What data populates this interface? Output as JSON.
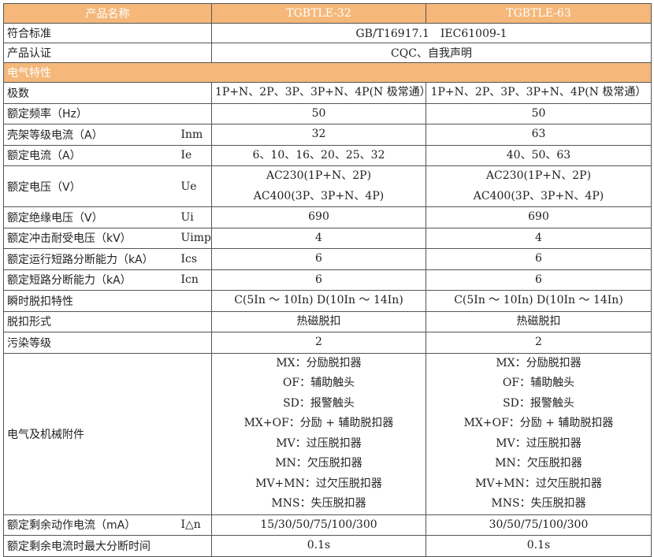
{
  "header": {
    "name": "产品名称",
    "models": [
      "TGBTLE-32",
      "TGBTLE-63"
    ]
  },
  "general": [
    {
      "label": "符合标准",
      "value": "GB/T16917.1　IEC61009-1"
    },
    {
      "label": "产品认证",
      "value": "CQC、自我声明"
    }
  ],
  "section": "电气特性",
  "rows": [
    {
      "label": "极数",
      "sym": "",
      "v": [
        [
          "1P+N、2P、3P、3P+N、4P(N 极常通）"
        ],
        [
          "1P+N、2P、3P、3P+N、4P(N 极常通）"
        ]
      ]
    },
    {
      "label": "额定频率（Hz）",
      "sym": "",
      "v": [
        [
          "50"
        ],
        [
          "50"
        ]
      ]
    },
    {
      "label": "壳架等级电流（A）",
      "sym": "Inm",
      "v": [
        [
          "32"
        ],
        [
          "63"
        ]
      ]
    },
    {
      "label": "额定电流（A）",
      "sym": "Ie",
      "v": [
        [
          "6、10、16、20、25、32"
        ],
        [
          "40、50、63"
        ]
      ]
    },
    {
      "label": "额定电压（V）",
      "sym": "Ue",
      "v": [
        [
          "AC230(1P+N、2P)",
          "AC400(3P、3P+N、4P)"
        ],
        [
          "AC230(1P+N、2P)",
          "AC400(3P、3P+N、4P)"
        ]
      ]
    },
    {
      "label": "额定绝缘电压（V）",
      "sym": "Ui",
      "v": [
        [
          "690"
        ],
        [
          "690"
        ]
      ]
    },
    {
      "label": "额定冲击耐受电压（kV）",
      "sym": "Uimp",
      "v": [
        [
          "4"
        ],
        [
          "4"
        ]
      ]
    },
    {
      "label": "额定运行短路分断能力（kA）",
      "sym": "Ics",
      "v": [
        [
          "6"
        ],
        [
          "6"
        ]
      ]
    },
    {
      "label": "额定短路分断能力（kA）",
      "sym": "Icn",
      "v": [
        [
          "6"
        ],
        [
          "6"
        ]
      ]
    },
    {
      "label": "瞬时脱扣特性",
      "sym": "",
      "v": [
        [
          "C(5In ～ 10In) D(10In ～ 14In)"
        ],
        [
          "C(5In ～ 10In) D(10In ～ 14In)"
        ]
      ]
    },
    {
      "label": "脱扣形式",
      "sym": "",
      "v": [
        [
          "热磁脱扣"
        ],
        [
          "热磁脱扣"
        ]
      ]
    },
    {
      "label": "污染等级",
      "sym": "",
      "v": [
        [
          "2"
        ],
        [
          "2"
        ]
      ]
    },
    {
      "label": "电气及机械附件",
      "sym": "",
      "v": [
        [
          "MX：分励脱扣器",
          "OF：辅助触头",
          "SD：报警触头",
          "MX+OF：分励 + 辅助脱扣器",
          "MV：过压脱扣器",
          "MN：欠压脱扣器",
          "MV+MN：过欠压脱扣器",
          "MNS：失压脱扣器"
        ],
        [
          "MX：分励脱扣器",
          "OF：辅助触头",
          "SD：报警触头",
          "MX+OF：分励 + 辅助脱扣器",
          "MV：过压脱扣器",
          "MN：欠压脱扣器",
          "MV+MN：过欠压脱扣器",
          "MNS：失压脱扣器"
        ]
      ]
    },
    {
      "label": "额定剩余动作电流（mA）",
      "sym": "I△n",
      "v": [
        [
          "15/30/50/75/100/300"
        ],
        [
          "30/50/75/100/300"
        ]
      ]
    },
    {
      "label": "额定剩余电流时最大分断时间",
      "sym": "",
      "v": [
        [
          "0.1s"
        ],
        [
          "0.1s"
        ]
      ]
    }
  ]
}
